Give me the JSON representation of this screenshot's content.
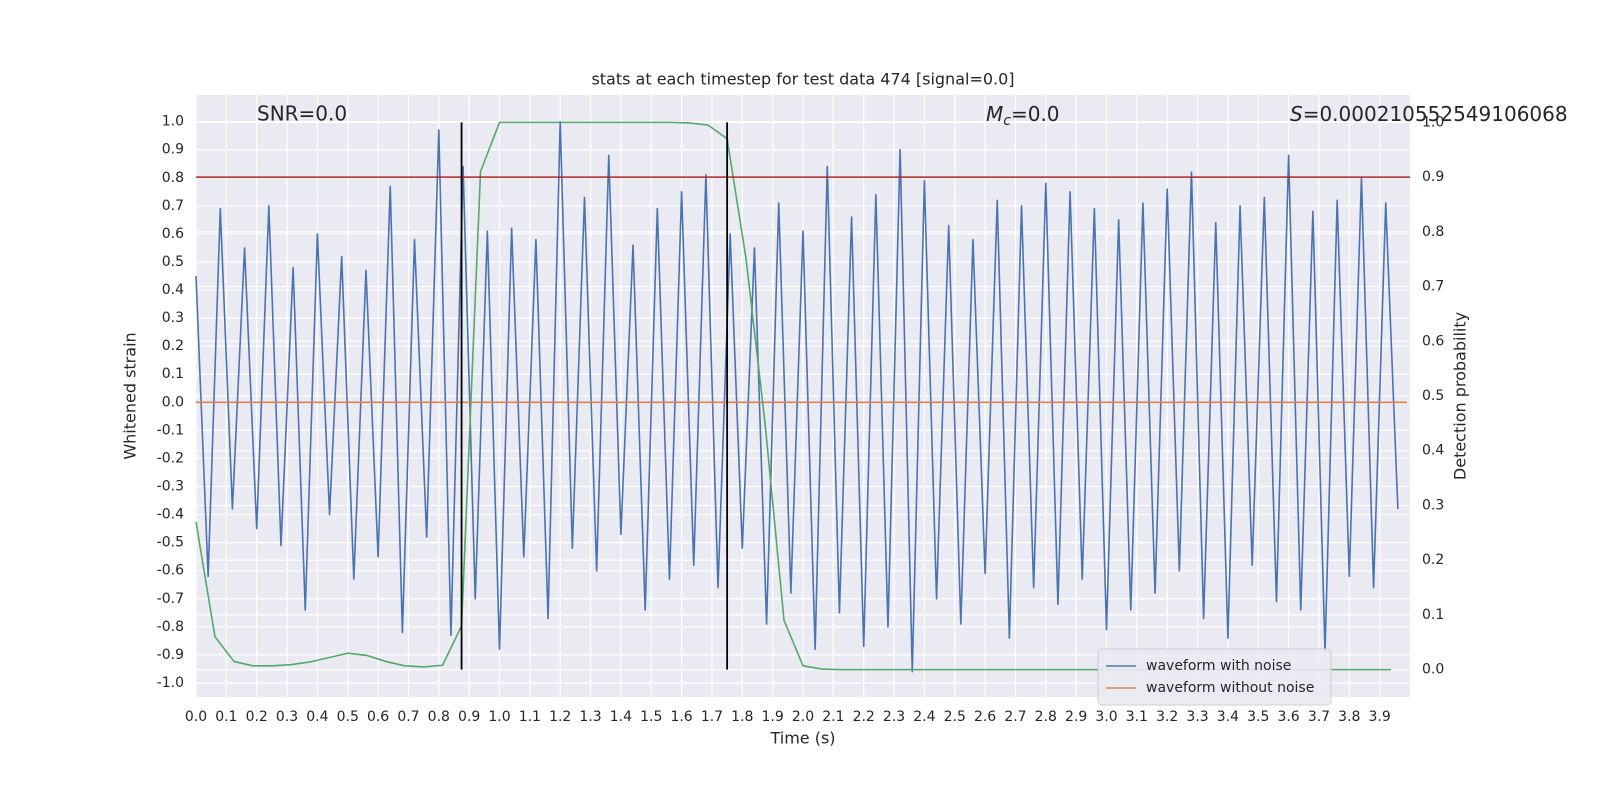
{
  "chart_data": {
    "type": "line",
    "title": "stats at each timestep for test data 474 [signal=0.0]",
    "xlabel": "Time (s)",
    "ylabel": "Whitened strain",
    "y2label": "Detection probability",
    "annotations": [
      {
        "text": "SNR=0.0"
      },
      {
        "symbol": "M",
        "subscript": "c",
        "text": "=0.0"
      },
      {
        "symbol": "S",
        "text": "=0.000210552549106068"
      }
    ],
    "xlim": [
      0,
      4.0
    ],
    "ylim": [
      -1.05,
      1.095
    ],
    "y2lim": [
      -0.05,
      1.05
    ],
    "xticks": [
      {
        "value": 0,
        "label": "0.0"
      },
      0.1,
      0.2,
      0.3,
      0.4,
      0.5,
      0.6,
      0.7,
      0.8,
      0.9,
      {
        "value": 1,
        "label": "1.0"
      },
      1.1,
      1.2,
      1.3,
      1.4,
      1.5,
      1.6,
      1.7,
      1.8,
      1.9,
      {
        "value": 2,
        "label": "2.0"
      },
      2.1,
      2.2,
      2.3,
      2.4,
      2.5,
      2.6,
      2.7,
      2.8,
      2.9,
      {
        "value": 3,
        "label": "3.0"
      },
      3.1,
      3.2,
      3.3,
      3.4,
      3.5,
      3.6,
      3.7,
      3.8,
      3.9
    ],
    "yticks": [
      {
        "value": -1,
        "label": "-1.0"
      },
      -0.9,
      -0.8,
      -0.7,
      -0.6,
      -0.5,
      -0.4,
      -0.3,
      -0.2,
      -0.1,
      {
        "value": 0,
        "label": "0.0"
      },
      0.1,
      0.2,
      0.3,
      0.4,
      0.5,
      0.6,
      0.7,
      0.8,
      0.9,
      {
        "value": 1,
        "label": "1.0"
      }
    ],
    "y2ticks": [
      {
        "value": 0,
        "label": "0.0"
      },
      0.1,
      0.2,
      0.3,
      0.4,
      0.5,
      0.6,
      0.7,
      0.8,
      0.9,
      {
        "value": 1,
        "label": "1.0"
      }
    ],
    "grid": true,
    "legend": "lower right",
    "series": [
      {
        "name": "waveform with noise",
        "color": "#4c72b0",
        "x": [
          0,
          0.04,
          0.08,
          0.12,
          0.16,
          0.2,
          0.24,
          0.28,
          0.32,
          0.36,
          0.4,
          0.44,
          0.48,
          0.52,
          0.56,
          0.6,
          0.64,
          0.68,
          0.72,
          0.76,
          0.8,
          0.84,
          0.88,
          0.92,
          0.96,
          1.0,
          1.04,
          1.08,
          1.12,
          1.16,
          1.2,
          1.24,
          1.28,
          1.32,
          1.36,
          1.4,
          1.44,
          1.48,
          1.52,
          1.56,
          1.6,
          1.64,
          1.68,
          1.72,
          1.76,
          1.8,
          1.84,
          1.88,
          1.92,
          1.96,
          2.0,
          2.04,
          2.08,
          2.12,
          2.16,
          2.2,
          2.24,
          2.28,
          2.32,
          2.36,
          2.4,
          2.44,
          2.48,
          2.52,
          2.56,
          2.6,
          2.64,
          2.68,
          2.72,
          2.76,
          2.8,
          2.84,
          2.88,
          2.92,
          2.96,
          3.0,
          3.04,
          3.08,
          3.12,
          3.16,
          3.2,
          3.24,
          3.28,
          3.32,
          3.36,
          3.4,
          3.44,
          3.48,
          3.52,
          3.56,
          3.6,
          3.64,
          3.68,
          3.72,
          3.76,
          3.8,
          3.84,
          3.88,
          3.92,
          3.96
        ],
        "values": [
          0.45,
          -0.62,
          0.69,
          -0.38,
          0.55,
          -0.45,
          0.7,
          -0.51,
          0.48,
          -0.74,
          0.6,
          -0.4,
          0.52,
          -0.63,
          0.47,
          -0.55,
          0.77,
          -0.82,
          0.58,
          -0.48,
          0.97,
          -0.83,
          0.84,
          -0.7,
          0.61,
          -0.88,
          0.62,
          -0.55,
          0.58,
          -0.77,
          1.0,
          -0.52,
          0.73,
          -0.6,
          0.88,
          -0.47,
          0.56,
          -0.74,
          0.69,
          -0.63,
          0.75,
          -0.58,
          0.81,
          -0.66,
          0.6,
          -0.52,
          0.55,
          -0.79,
          0.71,
          -0.68,
          0.61,
          -0.88,
          0.84,
          -0.75,
          0.66,
          -0.87,
          0.74,
          -0.8,
          0.9,
          -0.96,
          0.79,
          -0.7,
          0.63,
          -0.79,
          0.58,
          -0.61,
          0.72,
          -0.84,
          0.7,
          -0.66,
          0.78,
          -0.72,
          0.75,
          -0.63,
          0.69,
          -0.81,
          0.65,
          -0.74,
          0.71,
          -0.68,
          0.76,
          -0.6,
          0.82,
          -0.77,
          0.64,
          -0.84,
          0.7,
          -0.58,
          0.73,
          -0.71,
          0.88,
          -0.74,
          0.68,
          -0.89,
          0.72,
          -0.62,
          0.8,
          -0.66,
          0.71,
          -0.38
        ]
      },
      {
        "name": "waveform without noise",
        "color": "#dd8452",
        "x": [
          0,
          3.99
        ],
        "values": [
          0,
          0
        ]
      },
      {
        "color": "#55a868",
        "axis": "y2",
        "x": [
          0,
          0.0625,
          0.125,
          0.1875,
          0.25,
          0.3125,
          0.375,
          0.4375,
          0.5,
          0.5625,
          0.625,
          0.6875,
          0.75,
          0.8125,
          0.875,
          0.9375,
          1.0,
          1.0625,
          1.125,
          1.1875,
          1.25,
          1.3125,
          1.375,
          1.4375,
          1.5,
          1.5625,
          1.625,
          1.6875,
          1.75,
          1.8125,
          1.875,
          1.9375,
          2.0,
          2.0625,
          2.125,
          2.1875,
          2.25,
          2.3125,
          2.375,
          2.4375,
          2.5,
          2.5625,
          2.625,
          2.6875,
          2.75,
          2.8125,
          2.875,
          2.9375,
          3.0,
          3.0625,
          3.125,
          3.1875,
          3.25,
          3.3125,
          3.375,
          3.4375,
          3.5,
          3.5625,
          3.625,
          3.6875,
          3.75,
          3.8125,
          3.875,
          3.9375
        ],
        "values": [
          0.27,
          0.06,
          0.015,
          0.007,
          0.007,
          0.009,
          0.014,
          0.022,
          0.03,
          0.026,
          0.015,
          0.007,
          0.005,
          0.008,
          0.08,
          0.91,
          1.0,
          1.0,
          1.0,
          1.0,
          1.0,
          1.0,
          1.0,
          1.0,
          1.0,
          1.0,
          0.999,
          0.995,
          0.97,
          0.75,
          0.45,
          0.09,
          0.007,
          0.001,
          0,
          0,
          0,
          0,
          0,
          0,
          0,
          0,
          0,
          0,
          0,
          0,
          0,
          0,
          0,
          0,
          0,
          0,
          0,
          0,
          0,
          0,
          0,
          0,
          0,
          0,
          0,
          0,
          0,
          0
        ]
      }
    ],
    "hlines": [
      {
        "value": 0.9,
        "axis": "y2",
        "color": "#b22222"
      }
    ],
    "vlines": [
      {
        "value": 0.875,
        "color": "#000000"
      },
      {
        "value": 1.75,
        "color": "#000000"
      }
    ]
  }
}
